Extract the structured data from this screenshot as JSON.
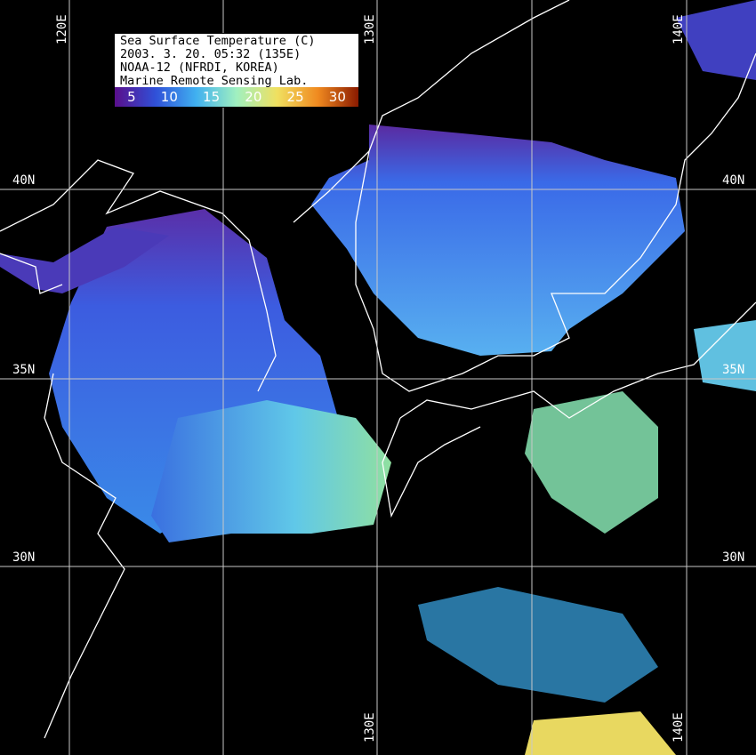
{
  "legend": {
    "title": "Sea Surface Temperature (C)",
    "datetime": "2003. 3. 20. 05:32 (135E)",
    "satellite": "NOAA-12 (NFRDI, KOREA)",
    "lab": "Marine Remote Sensing Lab.",
    "scale_ticks": [
      "5",
      "10",
      "15",
      "20",
      "25",
      "30"
    ],
    "scale_colors": [
      "#5a0f8c",
      "#3050d8",
      "#40b0f0",
      "#a0f0c0",
      "#f0e060",
      "#f08a20",
      "#8a1a00"
    ]
  },
  "grid": {
    "lon_labels_top": [
      "120E",
      "130E",
      "140E"
    ],
    "lon_labels_bottom": [
      "130E",
      "140E"
    ],
    "lat_labels_left": [
      "40N",
      "35N",
      "30N"
    ],
    "lat_labels_right": [
      "40N",
      "35N",
      "30N"
    ]
  },
  "colors": {
    "land_cloud": "#000000",
    "coastline": "#ffffff",
    "grid": "#c8c8c8"
  }
}
